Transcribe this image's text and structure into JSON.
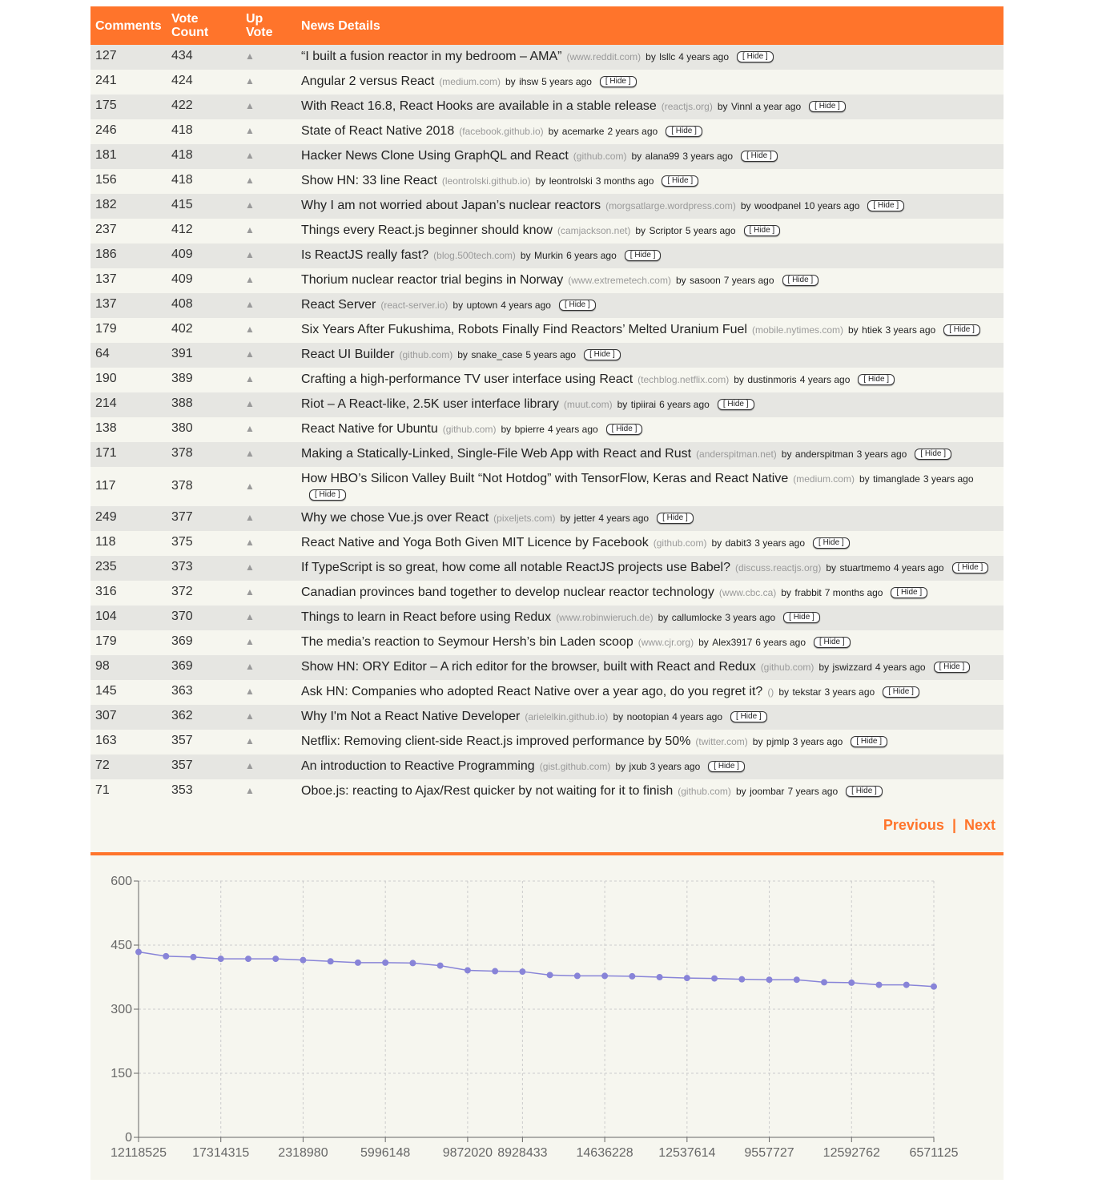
{
  "header": {
    "comments": "Comments",
    "vote_count_line1": "Vote",
    "vote_count_line2": "Count",
    "up_vote_line1": "Up",
    "up_vote_line2": "Vote",
    "news_details": "News Details"
  },
  "upvote_glyph": "▲",
  "hide_label": "[ Hide ]",
  "by_label": "by",
  "stories": [
    {
      "comments": "127",
      "votes": "434",
      "title": "“I built a fusion reactor in my bedroom – AMA”",
      "domain": "(www.reddit.com)",
      "author": "lsllc",
      "time": "4 years ago",
      "id": "12118525"
    },
    {
      "comments": "241",
      "votes": "424",
      "title": "Angular 2 versus React",
      "domain": "(medium.com)",
      "author": "ihsw",
      "time": "5 years ago",
      "id": ""
    },
    {
      "comments": "175",
      "votes": "422",
      "title": "With React 16.8, React Hooks are available in a stable release",
      "domain": "(reactjs.org)",
      "author": "Vinnl",
      "time": "a year ago",
      "id": ""
    },
    {
      "comments": "246",
      "votes": "418",
      "title": "State of React Native 2018",
      "domain": "(facebook.github.io)",
      "author": "acemarke",
      "time": "2 years ago",
      "id": "17314315"
    },
    {
      "comments": "181",
      "votes": "418",
      "title": "Hacker News Clone Using GraphQL and React",
      "domain": "(github.com)",
      "author": "alana99",
      "time": "3 years ago",
      "id": ""
    },
    {
      "comments": "156",
      "votes": "418",
      "title": "Show HN: 33 line React",
      "domain": "(leontrolski.github.io)",
      "author": "leontrolski",
      "time": "3 months ago",
      "id": ""
    },
    {
      "comments": "182",
      "votes": "415",
      "title": "Why I am not worried about Japan’s nuclear reactors",
      "domain": "(morgsatlarge.wordpress.com)",
      "author": "woodpanel",
      "time": "10 years ago",
      "id": "2318980"
    },
    {
      "comments": "237",
      "votes": "412",
      "title": "Things every React.js beginner should know",
      "domain": "(camjackson.net)",
      "author": "Scriptor",
      "time": "5 years ago",
      "id": ""
    },
    {
      "comments": "186",
      "votes": "409",
      "title": "Is ReactJS really fast?",
      "domain": "(blog.500tech.com)",
      "author": "Murkin",
      "time": "6 years ago",
      "id": ""
    },
    {
      "comments": "137",
      "votes": "409",
      "title": "Thorium nuclear reactor trial begins in Norway",
      "domain": "(www.extremetech.com)",
      "author": "sasoon",
      "time": "7 years ago",
      "id": "5996148"
    },
    {
      "comments": "137",
      "votes": "408",
      "title": "React Server",
      "domain": "(react-server.io)",
      "author": "uptown",
      "time": "4 years ago",
      "id": ""
    },
    {
      "comments": "179",
      "votes": "402",
      "title": "Six Years After Fukushima, Robots Finally Find Reactors’ Melted Uranium Fuel",
      "domain": "(mobile.nytimes.com)",
      "author": "htiek",
      "time": "3 years ago",
      "id": ""
    },
    {
      "comments": "64",
      "votes": "391",
      "title": "React UI Builder",
      "domain": "(github.com)",
      "author": "snake_case",
      "time": "5 years ago",
      "id": "9872020"
    },
    {
      "comments": "190",
      "votes": "389",
      "title": "Crafting a high-performance TV user interface using React",
      "domain": "(techblog.netflix.com)",
      "author": "dustinmoris",
      "time": "4 years ago",
      "id": ""
    },
    {
      "comments": "214",
      "votes": "388",
      "title": "Riot – A React-like, 2.5K user interface library",
      "domain": "(muut.com)",
      "author": "tipiirai",
      "time": "6 years ago",
      "id": "8928433"
    },
    {
      "comments": "138",
      "votes": "380",
      "title": "React Native for Ubuntu",
      "domain": "(github.com)",
      "author": "bpierre",
      "time": "4 years ago",
      "id": ""
    },
    {
      "comments": "171",
      "votes": "378",
      "title": "Making a Statically-Linked, Single-File Web App with React and Rust",
      "domain": "(anderspitman.net)",
      "author": "anderspitman",
      "time": "3 years ago",
      "id": ""
    },
    {
      "comments": "117",
      "votes": "378",
      "title": "How HBO’s Silicon Valley Built “Not Hotdog” with TensorFlow, Keras and React Native",
      "domain": "(medium.com)",
      "author": "timanglade",
      "time": "3 years ago",
      "id": "14636228",
      "wrap": true
    },
    {
      "comments": "249",
      "votes": "377",
      "title": "Why we chose Vue.js over React",
      "domain": "(pixeljets.com)",
      "author": "jetter",
      "time": "4 years ago",
      "id": ""
    },
    {
      "comments": "118",
      "votes": "375",
      "title": "React Native and Yoga Both Given MIT Licence by Facebook",
      "domain": "(github.com)",
      "author": "dabit3",
      "time": "3 years ago",
      "id": ""
    },
    {
      "comments": "235",
      "votes": "373",
      "title": "If TypeScript is so great, how come all notable ReactJS projects use Babel?",
      "domain": "(discuss.reactjs.org)",
      "author": "stuartmemo",
      "time": "4 years ago",
      "id": "12537614"
    },
    {
      "comments": "316",
      "votes": "372",
      "title": "Canadian provinces band together to develop nuclear reactor technology",
      "domain": "(www.cbc.ca)",
      "author": "frabbit",
      "time": "7 months ago",
      "id": ""
    },
    {
      "comments": "104",
      "votes": "370",
      "title": "Things to learn in React before using Redux",
      "domain": "(www.robinwieruch.de)",
      "author": "callumlocke",
      "time": "3 years ago",
      "id": ""
    },
    {
      "comments": "179",
      "votes": "369",
      "title": "The media’s reaction to Seymour Hersh’s bin Laden scoop",
      "domain": "(www.cjr.org)",
      "author": "Alex3917",
      "time": "6 years ago",
      "id": "9557727"
    },
    {
      "comments": "98",
      "votes": "369",
      "title": "Show HN: ORY Editor – A rich editor for the browser, built with React and Redux",
      "domain": "(github.com)",
      "author": "jswizzard",
      "time": "4 years ago",
      "id": ""
    },
    {
      "comments": "145",
      "votes": "363",
      "title": "Ask HN: Companies who adopted React Native over a year ago, do you regret it?",
      "domain": "()",
      "author": "tekstar",
      "time": "3 years ago",
      "id": ""
    },
    {
      "comments": "307",
      "votes": "362",
      "title": "Why I'm Not a React Native Developer",
      "domain": "(arielelkin.github.io)",
      "author": "nootopian",
      "time": "4 years ago",
      "id": "12592762"
    },
    {
      "comments": "163",
      "votes": "357",
      "title": "Netflix: Removing client-side React.js improved performance by 50%",
      "domain": "(twitter.com)",
      "author": "pjmlp",
      "time": "3 years ago",
      "id": ""
    },
    {
      "comments": "72",
      "votes": "357",
      "title": "An introduction to Reactive Programming",
      "domain": "(gist.github.com)",
      "author": "jxub",
      "time": "3 years ago",
      "id": ""
    },
    {
      "comments": "71",
      "votes": "353",
      "title": "Oboe.js: reacting to Ajax/Rest quicker by not waiting for it to finish",
      "domain": "(github.com)",
      "author": "joombar",
      "time": "7 years ago",
      "id": "6571125"
    }
  ],
  "pager": {
    "previous": "Previous",
    "separator": "|",
    "next": "Next"
  },
  "colors": {
    "accent": "#ff742b",
    "line": "#8884d8",
    "row_alt": "#e6e6e2",
    "row_base": "#f6f6ef"
  },
  "chart_data": {
    "type": "line",
    "x": [
      "12118525",
      "",
      "",
      "17314315",
      "",
      "",
      "2318980",
      "",
      "",
      "5996148",
      "",
      "",
      "9872020",
      "",
      "8928433",
      "",
      "",
      "14636228",
      "",
      "",
      "12537614",
      "",
      "",
      "9557727",
      "",
      "",
      "12592762",
      "",
      "",
      "6571125"
    ],
    "values": [
      434,
      424,
      422,
      418,
      418,
      418,
      415,
      412,
      409,
      409,
      408,
      402,
      391,
      389,
      388,
      380,
      378,
      378,
      377,
      375,
      373,
      372,
      370,
      369,
      369,
      363,
      362,
      357,
      357,
      353
    ],
    "ylim": [
      0,
      600
    ],
    "yticks": [
      0,
      150,
      300,
      450,
      600
    ],
    "xticklabels": [
      "12118525",
      "17314315",
      "2318980",
      "5996148",
      "9872020",
      "8928433",
      "14636228",
      "12537614",
      "9557727",
      "12592762",
      "6571125"
    ],
    "xtick_indices": [
      0,
      3,
      6,
      9,
      12,
      14,
      17,
      20,
      23,
      26,
      29
    ],
    "grid": true,
    "title": "",
    "xlabel": "",
    "ylabel": ""
  }
}
